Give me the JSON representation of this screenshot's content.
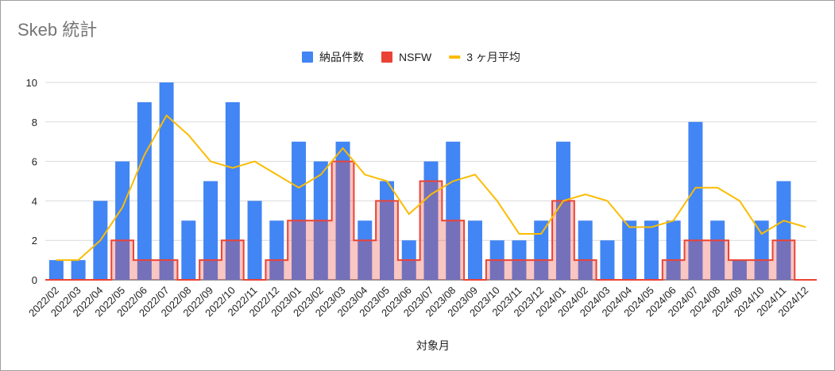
{
  "chart_data": {
    "type": "bar",
    "title": "Skeb 統計",
    "xlabel": "対象月",
    "ylabel": "",
    "ylim": [
      0,
      10
    ],
    "yticks": [
      0,
      2,
      4,
      6,
      8,
      10
    ],
    "grid": true,
    "legend_position": "top",
    "categories": [
      "2022/02",
      "2022/03",
      "2022/04",
      "2022/05",
      "2022/06",
      "2022/07",
      "2022/08",
      "2022/09",
      "2022/10",
      "2022/11",
      "2022/12",
      "2023/01",
      "2023/02",
      "2023/03",
      "2023/04",
      "2023/05",
      "2023/06",
      "2023/07",
      "2023/08",
      "2023/09",
      "2023/10",
      "2023/11",
      "2023/12",
      "2024/01",
      "2024/02",
      "2024/03",
      "2024/04",
      "2024/05",
      "2024/06",
      "2024/07",
      "2024/08",
      "2024/09",
      "2024/10",
      "2024/11",
      "2024/12"
    ],
    "series": [
      {
        "name": "納品件数",
        "type": "bar",
        "color": "#4285f4",
        "values": [
          1,
          1,
          4,
          6,
          9,
          10,
          3,
          5,
          9,
          4,
          3,
          7,
          6,
          7,
          3,
          5,
          2,
          6,
          7,
          3,
          2,
          2,
          3,
          7,
          3,
          2,
          3,
          3,
          3,
          8,
          3,
          1,
          3,
          5,
          0
        ]
      },
      {
        "name": "NSFW",
        "type": "stepped-area",
        "color": "#ea4335",
        "values": [
          0,
          0,
          0,
          2,
          1,
          1,
          0,
          1,
          2,
          0,
          1,
          3,
          3,
          6,
          2,
          4,
          1,
          5,
          3,
          0,
          1,
          1,
          1,
          4,
          1,
          0,
          0,
          0,
          1,
          2,
          2,
          1,
          1,
          2,
          0
        ]
      },
      {
        "name": "3 ヶ月平均",
        "type": "line",
        "color": "#fbbc04",
        "values": [
          1,
          1,
          2,
          3.67,
          6.33,
          8.33,
          7.33,
          6,
          5.67,
          6,
          5.33,
          4.67,
          5.33,
          6.67,
          5.33,
          5,
          3.33,
          4.33,
          5,
          5.33,
          4,
          2.33,
          2.33,
          4,
          4.33,
          4,
          2.67,
          2.67,
          3,
          4.67,
          4.67,
          4,
          2.33,
          3,
          2.67
        ]
      }
    ]
  }
}
